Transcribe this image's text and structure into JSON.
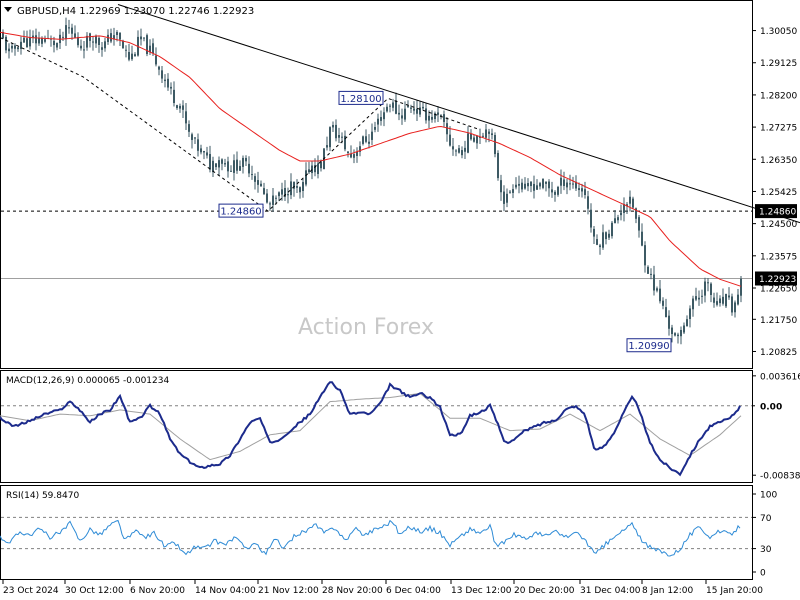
{
  "main_panel": {
    "header": "GBPUSD,H4  1.22969 1.23070 1.22746 1.22923",
    "watermark": "Action Forex",
    "price_ticks": [
      "1.30050",
      "1.29125",
      "1.28200",
      "1.27275",
      "1.26350",
      "1.25425",
      "1.24500",
      "1.23575",
      "1.22650",
      "1.21750",
      "1.20825"
    ],
    "price_tick_values": [
      1.3005,
      1.29125,
      1.282,
      1.27275,
      1.2635,
      1.25425,
      1.245,
      1.23575,
      1.2265,
      1.2175,
      1.20825
    ],
    "hline_label": "1.24860",
    "current_price_label": "1.22923",
    "annotations": [
      {
        "text": "1.28100",
        "value": 1.281
      },
      {
        "text": "1.24860",
        "value": 1.2486
      },
      {
        "text": "1.20990",
        "value": 1.2099
      }
    ]
  },
  "macd_panel": {
    "header": "MACD(12,26,9) 0.000065 -0.001234",
    "ticks": [
      "0.003616",
      "0.00",
      "-0.00838"
    ],
    "current_label": "0.00"
  },
  "rsi_panel": {
    "header": "RSI(14) 59.8470",
    "ticks": [
      "100",
      "70",
      "30",
      "0"
    ]
  },
  "x_axis_labels": [
    "23 Oct 2024",
    "30 Oct 12:00",
    "6 Nov 20:00",
    "14 Nov 04:00",
    "21 Nov 12:00",
    "28 Nov 20:00",
    "6 Dec 04:00",
    "13 Dec 12:00",
    "20 Dec 20:00",
    "31 Dec 04:00",
    "8 Jan 12:00",
    "15 Jan 20:00"
  ],
  "colors": {
    "background": "#ffffff",
    "candle": "#3d5a64",
    "ma_line": "#e8201e",
    "trendline": "#000000",
    "macd_line": "#1c2b8c",
    "signal_line": "#a0a0a0",
    "rsi_line": "#2e8bd6",
    "grid_dash": "#808080",
    "label_bg": "#000000",
    "label_text": "#ffffff"
  },
  "chart_data": [
    {
      "type": "candlestick",
      "title": "GBPUSD,H4",
      "ohlc_last": {
        "open": 1.22969,
        "high": 1.2307,
        "low": 1.22746,
        "close": 1.22923
      },
      "ylim": [
        1.2035,
        1.309
      ],
      "close_path": [
        [
          0,
          1.2995
        ],
        [
          10,
          1.2935
        ],
        [
          20,
          1.2975
        ],
        [
          33,
          1.2975
        ],
        [
          45,
          1.298
        ],
        [
          58,
          1.2965
        ],
        [
          68,
          1.301
        ],
        [
          80,
          1.296
        ],
        [
          93,
          1.299
        ],
        [
          103,
          1.296
        ],
        [
          115,
          1.3
        ],
        [
          122,
          1.296
        ],
        [
          130,
          1.292
        ],
        [
          140,
          1.298
        ],
        [
          150,
          1.2945
        ],
        [
          160,
          1.2895
        ],
        [
          170,
          1.283
        ],
        [
          180,
          1.279
        ],
        [
          190,
          1.2695
        ],
        [
          200,
          1.266
        ],
        [
          210,
          1.262
        ],
        [
          220,
          1.264
        ],
        [
          230,
          1.261
        ],
        [
          240,
          1.2625
        ],
        [
          250,
          1.261
        ],
        [
          260,
          1.256
        ],
        [
          268,
          1.25
        ],
        [
          280,
          1.253
        ],
        [
          290,
          1.256
        ],
        [
          300,
          1.253
        ],
        [
          310,
          1.262
        ],
        [
          320,
          1.261
        ],
        [
          330,
          1.272
        ],
        [
          340,
          1.27
        ],
        [
          350,
          1.264
        ],
        [
          360,
          1.268
        ],
        [
          370,
          1.27
        ],
        [
          380,
          1.2755
        ],
        [
          390,
          1.28
        ],
        [
          400,
          1.276
        ],
        [
          410,
          1.279
        ],
        [
          420,
          1.277
        ],
        [
          430,
          1.276
        ],
        [
          440,
          1.2755
        ],
        [
          450,
          1.268
        ],
        [
          460,
          1.265
        ],
        [
          470,
          1.27
        ],
        [
          480,
          1.271
        ],
        [
          490,
          1.273
        ],
        [
          497,
          1.26
        ],
        [
          505,
          1.251
        ],
        [
          515,
          1.258
        ],
        [
          525,
          1.2545
        ],
        [
          535,
          1.2565
        ],
        [
          545,
          1.256
        ],
        [
          555,
          1.254
        ],
        [
          565,
          1.258
        ],
        [
          575,
          1.256
        ],
        [
          585,
          1.254
        ],
        [
          595,
          1.238
        ],
        [
          605,
          1.242
        ],
        [
          615,
          1.2455
        ],
        [
          625,
          1.252
        ],
        [
          633,
          1.25
        ],
        [
          642,
          1.238
        ],
        [
          650,
          1.23
        ],
        [
          660,
          1.223
        ],
        [
          670,
          1.215
        ],
        [
          678,
          1.211
        ],
        [
          688,
          1.22
        ],
        [
          698,
          1.224
        ],
        [
          706,
          1.228
        ],
        [
          716,
          1.221
        ],
        [
          726,
          1.223
        ],
        [
          734,
          1.22
        ],
        [
          741,
          1.2292
        ]
      ],
      "ma_path": [
        [
          0,
          1.3
        ],
        [
          30,
          1.2985
        ],
        [
          60,
          1.298
        ],
        [
          100,
          1.299
        ],
        [
          130,
          1.297
        ],
        [
          160,
          1.293
        ],
        [
          190,
          1.287
        ],
        [
          220,
          1.278
        ],
        [
          250,
          1.272
        ],
        [
          280,
          1.266
        ],
        [
          300,
          1.263
        ],
        [
          320,
          1.263
        ],
        [
          350,
          1.265
        ],
        [
          380,
          1.268
        ],
        [
          410,
          1.271
        ],
        [
          440,
          1.273
        ],
        [
          470,
          1.271
        ],
        [
          500,
          1.268
        ],
        [
          530,
          1.264
        ],
        [
          560,
          1.259
        ],
        [
          590,
          1.255
        ],
        [
          620,
          1.251
        ],
        [
          650,
          1.247
        ],
        [
          670,
          1.24
        ],
        [
          700,
          1.232
        ],
        [
          720,
          1.229
        ],
        [
          741,
          1.227
        ]
      ],
      "trendline": {
        "from": [
          118,
          1.308
        ],
        "to": [
          800,
          1.2453
        ]
      },
      "zigzag": [
        [
          0,
          1.2985
        ],
        [
          83,
          1.2872
        ],
        [
          268,
          1.2486
        ],
        [
          388,
          1.281
        ],
        [
          480,
          1.272
        ]
      ],
      "horizontal_line": 1.2486,
      "current_line": 1.22923
    },
    {
      "type": "line",
      "title": "MACD(12,26,9)",
      "macd_value": 6.5e-05,
      "signal_value": -0.001234,
      "ylim": [
        -0.0092,
        0.0042
      ],
      "macd_path": [
        [
          0,
          -0.0015
        ],
        [
          15,
          -0.0025
        ],
        [
          30,
          -0.0018
        ],
        [
          45,
          -0.001
        ],
        [
          60,
          -0.0005
        ],
        [
          70,
          0.0005
        ],
        [
          80,
          -0.0005
        ],
        [
          90,
          -0.002
        ],
        [
          100,
          -0.001
        ],
        [
          110,
          -0.0005
        ],
        [
          120,
          0.0012
        ],
        [
          130,
          -0.002
        ],
        [
          140,
          -0.0015
        ],
        [
          150,
          0.0
        ],
        [
          160,
          -0.001
        ],
        [
          170,
          -0.004
        ],
        [
          180,
          -0.0058
        ],
        [
          190,
          -0.0068
        ],
        [
          200,
          -0.0075
        ],
        [
          210,
          -0.0072
        ],
        [
          220,
          -0.007
        ],
        [
          230,
          -0.006
        ],
        [
          240,
          -0.004
        ],
        [
          250,
          -0.002
        ],
        [
          260,
          -0.0015
        ],
        [
          270,
          -0.0045
        ],
        [
          280,
          -0.004
        ],
        [
          290,
          -0.003
        ],
        [
          300,
          -0.002
        ],
        [
          310,
          -0.001
        ],
        [
          320,
          0.001
        ],
        [
          330,
          0.003
        ],
        [
          340,
          0.0018
        ],
        [
          350,
          -0.001
        ],
        [
          360,
          -0.0008
        ],
        [
          370,
          -0.001
        ],
        [
          380,
          0.0002
        ],
        [
          390,
          0.0025
        ],
        [
          400,
          0.0018
        ],
        [
          410,
          0.001
        ],
        [
          420,
          0.0015
        ],
        [
          430,
          0.001
        ],
        [
          440,
          -0.0002
        ],
        [
          450,
          -0.0035
        ],
        [
          460,
          -0.0035
        ],
        [
          470,
          -0.0012
        ],
        [
          480,
          -0.0008
        ],
        [
          490,
          0.0
        ],
        [
          497,
          -0.002
        ],
        [
          505,
          -0.0045
        ],
        [
          515,
          -0.004
        ],
        [
          525,
          -0.003
        ],
        [
          535,
          -0.0025
        ],
        [
          545,
          -0.002
        ],
        [
          555,
          -0.0018
        ],
        [
          565,
          -0.0005
        ],
        [
          575,
          0.0
        ],
        [
          585,
          -0.001
        ],
        [
          595,
          -0.0055
        ],
        [
          605,
          -0.0048
        ],
        [
          615,
          -0.003
        ],
        [
          625,
          -0.0005
        ],
        [
          633,
          0.0012
        ],
        [
          642,
          -0.0015
        ],
        [
          650,
          -0.0045
        ],
        [
          660,
          -0.0065
        ],
        [
          670,
          -0.0075
        ],
        [
          680,
          -0.0082
        ],
        [
          690,
          -0.006
        ],
        [
          700,
          -0.004
        ],
        [
          710,
          -0.0025
        ],
        [
          720,
          -0.002
        ],
        [
          730,
          -0.0015
        ],
        [
          741,
          0.0
        ]
      ],
      "signal_path": [
        [
          0,
          -0.0012
        ],
        [
          30,
          -0.0018
        ],
        [
          60,
          -0.001
        ],
        [
          90,
          -0.0012
        ],
        [
          120,
          -0.0005
        ],
        [
          150,
          -0.001
        ],
        [
          180,
          -0.004
        ],
        [
          210,
          -0.0065
        ],
        [
          240,
          -0.0055
        ],
        [
          270,
          -0.0035
        ],
        [
          300,
          -0.003
        ],
        [
          330,
          0.0005
        ],
        [
          360,
          0.0008
        ],
        [
          390,
          0.001
        ],
        [
          420,
          0.0015
        ],
        [
          450,
          -0.0015
        ],
        [
          480,
          -0.0015
        ],
        [
          510,
          -0.003
        ],
        [
          540,
          -0.0028
        ],
        [
          570,
          -0.001
        ],
        [
          600,
          -0.003
        ],
        [
          630,
          -0.001
        ],
        [
          660,
          -0.004
        ],
        [
          690,
          -0.006
        ],
        [
          720,
          -0.0035
        ],
        [
          741,
          -0.0012
        ]
      ]
    },
    {
      "type": "line",
      "title": "RSI(14)",
      "current_value": 59.847,
      "ylim": [
        0,
        100
      ],
      "levels": [
        70,
        30
      ],
      "rsi_path": [
        [
          0,
          45
        ],
        [
          10,
          38
        ],
        [
          20,
          52
        ],
        [
          30,
          48
        ],
        [
          40,
          55
        ],
        [
          50,
          45
        ],
        [
          60,
          50
        ],
        [
          70,
          62
        ],
        [
          80,
          40
        ],
        [
          90,
          55
        ],
        [
          100,
          48
        ],
        [
          110,
          60
        ],
        [
          118,
          65
        ],
        [
          125,
          40
        ],
        [
          135,
          52
        ],
        [
          145,
          45
        ],
        [
          155,
          50
        ],
        [
          165,
          32
        ],
        [
          175,
          38
        ],
        [
          185,
          22
        ],
        [
          195,
          32
        ],
        [
          205,
          30
        ],
        [
          215,
          40
        ],
        [
          225,
          35
        ],
        [
          235,
          45
        ],
        [
          245,
          30
        ],
        [
          255,
          38
        ],
        [
          265,
          22
        ],
        [
          275,
          42
        ],
        [
          285,
          30
        ],
        [
          295,
          48
        ],
        [
          305,
          52
        ],
        [
          315,
          60
        ],
        [
          325,
          50
        ],
        [
          335,
          58
        ],
        [
          345,
          40
        ],
        [
          355,
          55
        ],
        [
          365,
          48
        ],
        [
          375,
          55
        ],
        [
          385,
          60
        ],
        [
          392,
          66
        ],
        [
          400,
          48
        ],
        [
          410,
          58
        ],
        [
          420,
          52
        ],
        [
          430,
          56
        ],
        [
          440,
          50
        ],
        [
          450,
          35
        ],
        [
          460,
          45
        ],
        [
          470,
          55
        ],
        [
          480,
          50
        ],
        [
          490,
          58
        ],
        [
          497,
          30
        ],
        [
          505,
          40
        ],
        [
          515,
          48
        ],
        [
          525,
          42
        ],
        [
          535,
          50
        ],
        [
          545,
          46
        ],
        [
          555,
          52
        ],
        [
          565,
          45
        ],
        [
          575,
          50
        ],
        [
          585,
          42
        ],
        [
          595,
          22
        ],
        [
          605,
          35
        ],
        [
          615,
          45
        ],
        [
          625,
          55
        ],
        [
          633,
          62
        ],
        [
          642,
          38
        ],
        [
          652,
          30
        ],
        [
          662,
          26
        ],
        [
          672,
          22
        ],
        [
          680,
          30
        ],
        [
          690,
          48
        ],
        [
          700,
          58
        ],
        [
          710,
          45
        ],
        [
          720,
          52
        ],
        [
          730,
          48
        ],
        [
          741,
          59.85
        ]
      ]
    }
  ]
}
